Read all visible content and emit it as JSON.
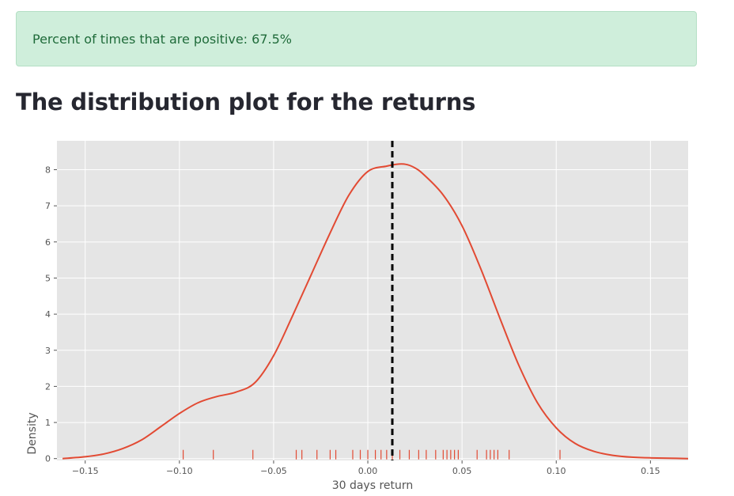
{
  "alert": {
    "text": "Percent of times that are positive: 67.5%"
  },
  "page": {
    "heading": "The distribution plot for the returns"
  },
  "colors": {
    "kde_line": "#e24a33",
    "rug": "#e24a33",
    "panel_bg": "#e5e5e5",
    "mean_line": "#000000",
    "alert_bg": "#cfeedb",
    "alert_text": "#1f6b3a"
  },
  "chart_data": {
    "type": "line",
    "style": "ggplot",
    "xlabel": "30 days return",
    "ylabel": "Density",
    "xlim": [
      -0.165,
      0.17
    ],
    "ylim": [
      -0.05,
      8.8
    ],
    "xticks": [
      -0.15,
      -0.1,
      -0.05,
      0.0,
      0.05,
      0.1,
      0.15
    ],
    "xtick_labels": [
      "−0.15",
      "−0.10",
      "−0.05",
      "0.00",
      "0.05",
      "0.10",
      "0.15"
    ],
    "yticks": [
      0,
      1,
      2,
      3,
      4,
      5,
      6,
      7,
      8
    ],
    "ytick_labels": [
      "0",
      "1",
      "2",
      "3",
      "4",
      "5",
      "6",
      "7",
      "8"
    ],
    "grid": true,
    "kde_curve": {
      "x": [
        -0.162,
        -0.15,
        -0.14,
        -0.13,
        -0.12,
        -0.11,
        -0.1,
        -0.09,
        -0.08,
        -0.07,
        -0.06,
        -0.05,
        -0.04,
        -0.03,
        -0.02,
        -0.01,
        0.0,
        0.01,
        0.015,
        0.02,
        0.025,
        0.03,
        0.04,
        0.05,
        0.06,
        0.07,
        0.08,
        0.09,
        0.1,
        0.11,
        0.12,
        0.13,
        0.14,
        0.15,
        0.16,
        0.17
      ],
      "y": [
        0.0,
        0.05,
        0.13,
        0.28,
        0.52,
        0.88,
        1.25,
        1.55,
        1.72,
        1.84,
        2.1,
        2.85,
        3.95,
        5.1,
        6.25,
        7.3,
        7.95,
        8.1,
        8.15,
        8.15,
        8.05,
        7.85,
        7.3,
        6.45,
        5.25,
        3.9,
        2.6,
        1.55,
        0.85,
        0.42,
        0.2,
        0.09,
        0.04,
        0.02,
        0.01,
        0.0
      ]
    },
    "rug": [
      -0.098,
      -0.082,
      -0.061,
      -0.038,
      -0.035,
      -0.027,
      -0.02,
      -0.017,
      -0.008,
      -0.004,
      0.0,
      0.004,
      0.007,
      0.01,
      0.013,
      0.017,
      0.022,
      0.027,
      0.031,
      0.036,
      0.04,
      0.042,
      0.044,
      0.046,
      0.048,
      0.058,
      0.063,
      0.065,
      0.067,
      0.069,
      0.075,
      0.102
    ],
    "mean_line": {
      "x": 0.013,
      "style": "dashed"
    }
  }
}
